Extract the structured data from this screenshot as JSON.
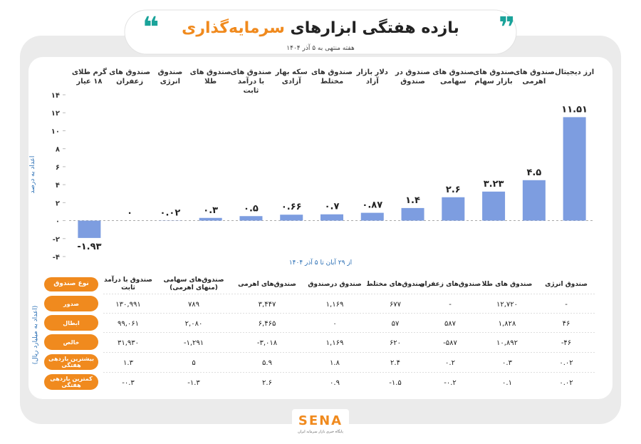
{
  "header": {
    "title_main": "بازده هفتگی ابزارهای",
    "title_highlight": "سرمایه‌گذاری",
    "subtitle": "هفته منتهی به ۵ آذر ۱۴۰۴"
  },
  "chart_data": {
    "type": "bar",
    "y_label": "اعداد به درصد",
    "x_label": "از ۲۹ آبان تا ۵ آذر ۱۴۰۴",
    "color": "#7d9de0",
    "categories": [
      "گرم طلای ۱۸ عیار",
      "صندوق های زعفران",
      "صندوق انرژی",
      "صندوق های طلا",
      "صندوق های با درآمد ثابت",
      "سکه بهار آزادی",
      "صندوق های مختلط",
      "دلار بازار آزاد",
      "صندوق در صندوق",
      "صندوق های سهامی",
      "صندوق های بازار سهام",
      "صندوق های اهرمی",
      "ارز دیجیتال"
    ],
    "values": [
      -1.93,
      0,
      0.02,
      0.3,
      0.5,
      0.66,
      0.7,
      0.87,
      1.4,
      2.6,
      3.23,
      4.5,
      11.51
    ],
    "value_labels": [
      "-۱.۹۳",
      "۰",
      "۰.۰۲",
      "۰.۳",
      "۰.۵",
      "۰.۶۶",
      "۰.۷",
      "۰.۸۷",
      "۱.۴",
      "۲.۶",
      "۳.۲۳",
      "۴.۵",
      "۱۱.۵۱"
    ],
    "ylim": [
      -4,
      14
    ],
    "yticks": [
      {
        "value": -4,
        "label": "-۴"
      },
      {
        "value": -2,
        "label": "-۲"
      },
      {
        "value": 0,
        "label": "۰"
      },
      {
        "value": 2,
        "label": "۲"
      },
      {
        "value": 4,
        "label": "۴"
      },
      {
        "value": 6,
        "label": "۶"
      },
      {
        "value": 8,
        "label": "۸"
      },
      {
        "value": 10,
        "label": "۱۰"
      },
      {
        "value": 12,
        "label": "۱۲"
      },
      {
        "value": 14,
        "label": "۱۴"
      }
    ]
  },
  "table": {
    "unit_label": "(اعداد به میلیارد ریال)",
    "header": [
      "نوع صندوق",
      "صندوق با درآمد ثابت",
      "صندوق‌های سهامی (منهای اهرمی)",
      "صندوق‌های اهرمی",
      "صندوق درصندوق",
      "صندوق‌های مختلط",
      "صندوق‌های زعفران",
      "صندوق های طلا",
      "صندوق انرژی"
    ],
    "rows": [
      [
        "صدور",
        "۱۳۰,۹۹۱",
        "۷۸۹",
        "۳,۴۴۷",
        "۱,۱۶۹",
        "۶۷۷",
        "-",
        "۱۲,۷۲۰",
        "-"
      ],
      [
        "ابطال",
        "۹۹,۰۶۱",
        "۲,۰۸۰",
        "۶,۴۶۵",
        "۰",
        "۵۷",
        "۵۸۷",
        "۱,۸۲۸",
        "۴۶"
      ],
      [
        "خالص",
        "۳۱,۹۳۰",
        "-۱,۲۹۱",
        "-۳,۰۱۸",
        "۱,۱۶۹",
        "۶۲۰",
        "-۵۸۷",
        "۱۰,۸۹۲",
        "-۴۶"
      ],
      [
        "بیشترین بازدهی هفتگی",
        "۱.۳",
        "۵",
        "۵.۹",
        "۱.۸",
        "۲.۴",
        "۰.۲",
        "۰.۳",
        "۰.۰۲"
      ],
      [
        "کمترین بازدهی هفتگی",
        "-۰.۳",
        "-۱.۳",
        "۲.۶",
        "۰.۹",
        "-۱.۵",
        "-۰.۲",
        "۰.۱",
        "۰.۰۲"
      ]
    ]
  },
  "footer": {
    "logo": "SENA",
    "caption": "پایگاه خبری بازار سرمایه ایران"
  }
}
